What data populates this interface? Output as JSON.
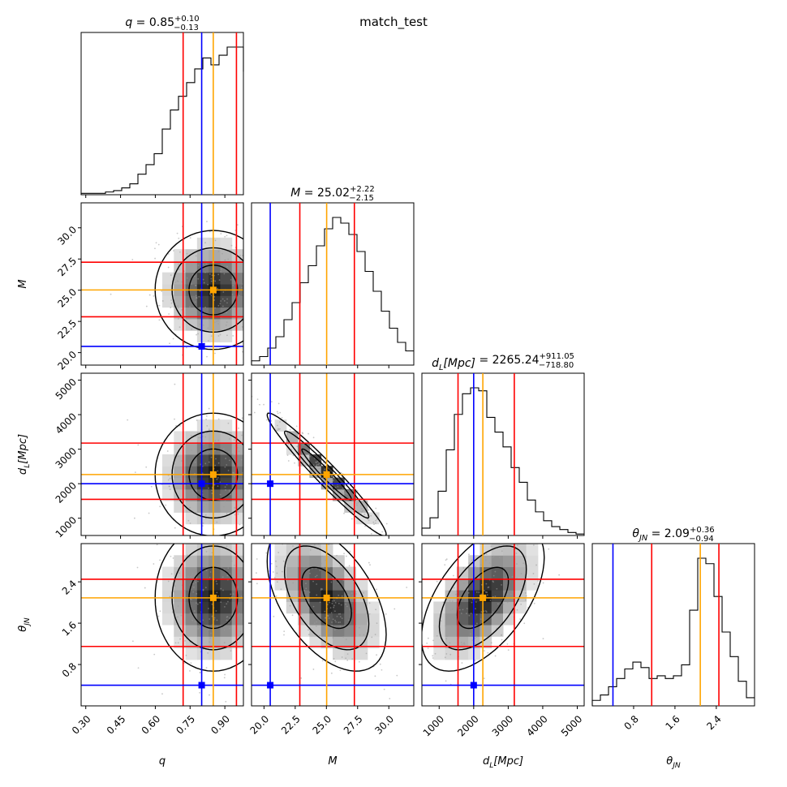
{
  "figure_title": "match_test",
  "colors": {
    "truth": "#0000ff",
    "median": "#ffa500",
    "interval": "#ff0000",
    "hist": "#000000"
  },
  "chart_data": {
    "type": "corner",
    "parameters": [
      {
        "key": "q",
        "label": "q",
        "range": [
          0.28,
          0.98
        ],
        "ticks": [
          "0.30",
          "0.45",
          "0.60",
          "0.75",
          "0.90"
        ],
        "tick_values": [
          0.3,
          0.45,
          0.6,
          0.75,
          0.9
        ],
        "truth": 0.8,
        "median": 0.85,
        "lower": 0.72,
        "upper": 0.95,
        "title_name": "q",
        "title_value": "0.85",
        "title_plus": "+0.10",
        "title_minus": "−0.13",
        "hist_start": 0.28,
        "hist_step": 0.035,
        "hist": [
          1,
          1,
          1,
          2,
          3,
          5,
          8,
          15,
          22,
          30,
          48,
          62,
          72,
          82,
          92,
          100,
          95,
          102,
          108,
          108,
          102,
          90
        ]
      },
      {
        "key": "M",
        "label": "M",
        "range": [
          19.0,
          32.0
        ],
        "ticks": [
          "20.0",
          "22.5",
          "25.0",
          "27.5",
          "30.0"
        ],
        "tick_values": [
          20.0,
          22.5,
          25.0,
          27.5,
          30.0
        ],
        "truth": 20.5,
        "median": 25.02,
        "lower": 22.87,
        "upper": 27.24,
        "title_name": "M",
        "title_value": "25.02",
        "title_plus": "+2.22",
        "title_minus": "−2.15",
        "hist_start": 19.0,
        "hist_step": 0.65,
        "hist": [
          3,
          6,
          12,
          20,
          32,
          44,
          58,
          70,
          84,
          96,
          104,
          100,
          92,
          80,
          66,
          52,
          38,
          26,
          16,
          10
        ]
      },
      {
        "key": "dL",
        "label": "d_L[Mpc]",
        "range": [
          500,
          5200
        ],
        "ticks": [
          "1000",
          "2000",
          "3000",
          "4000",
          "5000"
        ],
        "tick_values": [
          1000,
          2000,
          3000,
          4000,
          5000
        ],
        "truth": 2000,
        "median": 2265.24,
        "lower": 1546.44,
        "upper": 3176.29,
        "title_name": "d_L[Mpc]",
        "title_value": "2265.24",
        "title_plus": "+911.05",
        "title_minus": "−718.80",
        "hist_start": 500,
        "hist_step": 235,
        "hist": [
          5,
          12,
          30,
          58,
          82,
          96,
          100,
          98,
          80,
          70,
          60,
          46,
          36,
          24,
          16,
          10,
          6,
          4,
          2,
          1
        ]
      },
      {
        "key": "thetaJN",
        "label": "θ_JN",
        "range": [
          0.0,
          3.14
        ],
        "ticks": [
          "0.8",
          "1.6",
          "2.4"
        ],
        "tick_values": [
          0.8,
          1.6,
          2.4
        ],
        "truth": 0.4,
        "median": 2.09,
        "lower": 1.15,
        "upper": 2.45,
        "title_name": "θ_JN",
        "title_value": "2.09",
        "title_plus": "+0.36",
        "title_minus": "−0.94",
        "hist_start": 0.0,
        "hist_step": 0.157,
        "hist": [
          4,
          8,
          14,
          20,
          27,
          32,
          28,
          20,
          22,
          20,
          22,
          30,
          70,
          108,
          104,
          80,
          54,
          36,
          18,
          6
        ]
      }
    ]
  }
}
